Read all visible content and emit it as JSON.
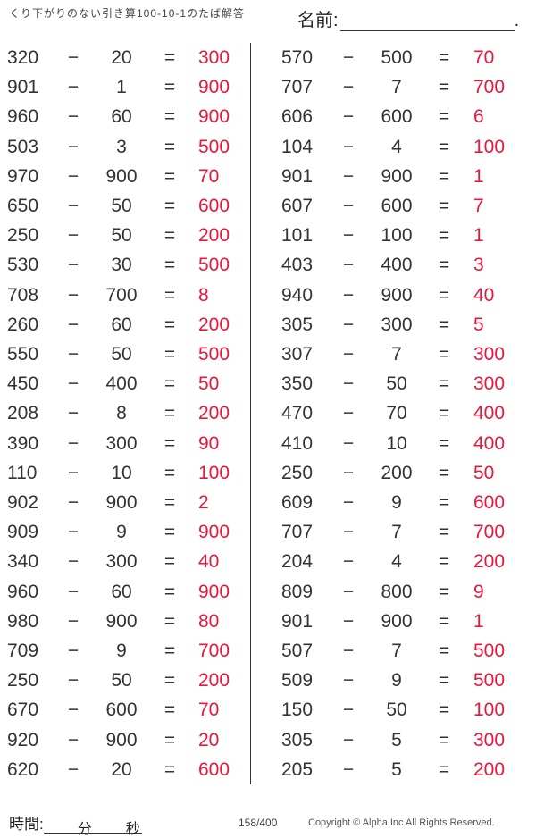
{
  "header": {
    "title": "くり下がりのない引き算100-10-1のたば解答",
    "name_label": "名前:",
    "name_dot": "."
  },
  "operators": {
    "minus": "−",
    "equals": "="
  },
  "colors": {
    "answer": "#e8173c",
    "text": "#333333"
  },
  "left": [
    [
      "320",
      "20",
      "300"
    ],
    [
      "901",
      "1",
      "900"
    ],
    [
      "960",
      "60",
      "900"
    ],
    [
      "503",
      "3",
      "500"
    ],
    [
      "970",
      "900",
      "70"
    ],
    [
      "650",
      "50",
      "600"
    ],
    [
      "250",
      "50",
      "200"
    ],
    [
      "530",
      "30",
      "500"
    ],
    [
      "708",
      "700",
      "8"
    ],
    [
      "260",
      "60",
      "200"
    ],
    [
      "550",
      "50",
      "500"
    ],
    [
      "450",
      "400",
      "50"
    ],
    [
      "208",
      "8",
      "200"
    ],
    [
      "390",
      "300",
      "90"
    ],
    [
      "110",
      "10",
      "100"
    ],
    [
      "902",
      "900",
      "2"
    ],
    [
      "909",
      "9",
      "900"
    ],
    [
      "340",
      "300",
      "40"
    ],
    [
      "960",
      "60",
      "900"
    ],
    [
      "980",
      "900",
      "80"
    ],
    [
      "709",
      "9",
      "700"
    ],
    [
      "250",
      "50",
      "200"
    ],
    [
      "670",
      "600",
      "70"
    ],
    [
      "920",
      "900",
      "20"
    ],
    [
      "620",
      "20",
      "600"
    ]
  ],
  "right": [
    [
      "570",
      "500",
      "70"
    ],
    [
      "707",
      "7",
      "700"
    ],
    [
      "606",
      "600",
      "6"
    ],
    [
      "104",
      "4",
      "100"
    ],
    [
      "901",
      "900",
      "1"
    ],
    [
      "607",
      "600",
      "7"
    ],
    [
      "101",
      "100",
      "1"
    ],
    [
      "403",
      "400",
      "3"
    ],
    [
      "940",
      "900",
      "40"
    ],
    [
      "305",
      "300",
      "5"
    ],
    [
      "307",
      "7",
      "300"
    ],
    [
      "350",
      "50",
      "300"
    ],
    [
      "470",
      "70",
      "400"
    ],
    [
      "410",
      "10",
      "400"
    ],
    [
      "250",
      "200",
      "50"
    ],
    [
      "609",
      "9",
      "600"
    ],
    [
      "707",
      "7",
      "700"
    ],
    [
      "204",
      "4",
      "200"
    ],
    [
      "809",
      "800",
      "9"
    ],
    [
      "901",
      "900",
      "1"
    ],
    [
      "507",
      "7",
      "500"
    ],
    [
      "509",
      "9",
      "500"
    ],
    [
      "150",
      "50",
      "100"
    ],
    [
      "305",
      "5",
      "300"
    ],
    [
      "205",
      "5",
      "200"
    ]
  ],
  "footer": {
    "time_label": "時間:",
    "minutes": "分",
    "seconds": "秒",
    "page": "158/400",
    "copyright": "Copyright ©  Alpha.Inc All Rights Reserved."
  }
}
